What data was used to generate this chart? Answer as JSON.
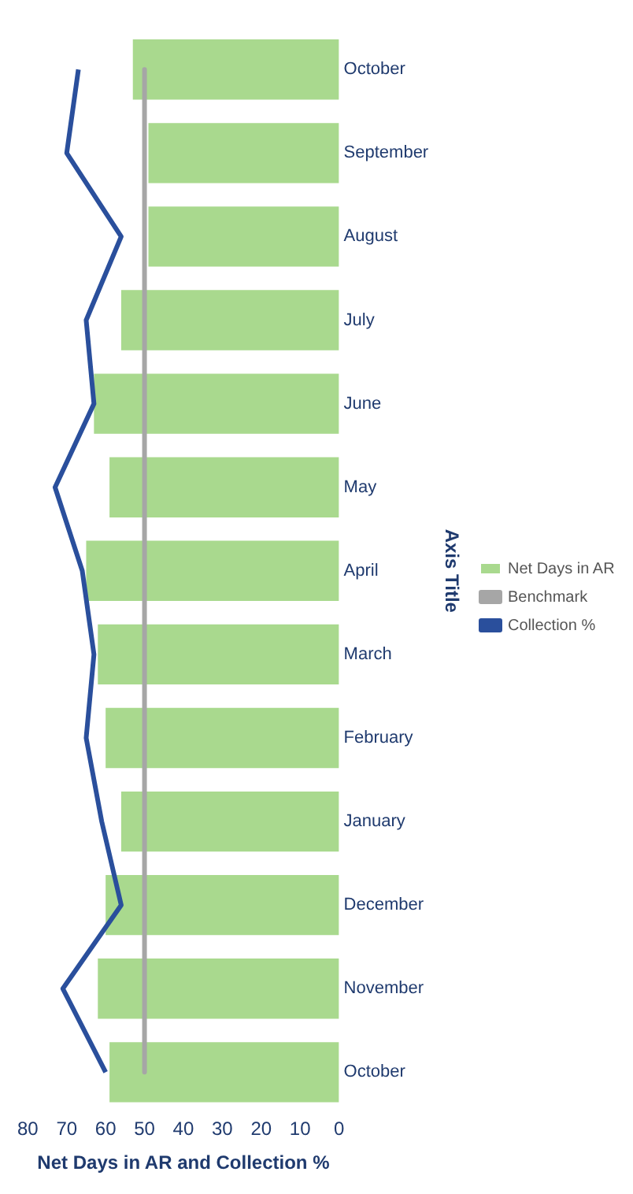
{
  "chart_data": {
    "type": "bar",
    "orientation": "horizontal",
    "xlabel": "Net Days in AR and Collection %",
    "ylabel": "Axis Title",
    "categories": [
      "October",
      "September",
      "August",
      "July",
      "June",
      "May",
      "April",
      "March",
      "February",
      "January",
      "December",
      "November",
      "October"
    ],
    "series": [
      {
        "name": "Net Days in AR",
        "color": "#a9d98e",
        "values": [
          53,
          49,
          49,
          56,
          63,
          59,
          65,
          62,
          60,
          56,
          60,
          62,
          59
        ]
      },
      {
        "name": "Collection %",
        "type": "line",
        "color": "#2a4f9c",
        "values": [
          67,
          70,
          56,
          65,
          63,
          73,
          66,
          63,
          65,
          61,
          56,
          71,
          60
        ]
      },
      {
        "name": "Benchmark",
        "type": "line",
        "color": "#a6a6a6",
        "values": [
          50,
          50,
          50,
          50,
          50,
          50,
          50,
          50,
          50,
          50,
          50,
          50,
          50
        ]
      }
    ],
    "xlim": [
      80,
      0
    ],
    "xticks": [
      80,
      70,
      60,
      50,
      40,
      30,
      20,
      10,
      0
    ],
    "grid": false,
    "legend": "right",
    "marker": "none",
    "line_style": "solid"
  }
}
